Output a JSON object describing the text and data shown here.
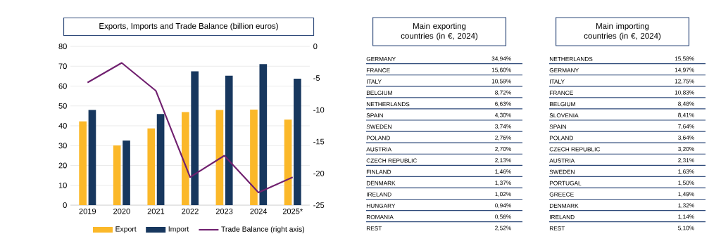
{
  "chart_data": [
    {
      "type": "bar",
      "title": "Exports, Imports and Trade Balance (billion euros)",
      "categories": [
        "2019",
        "2020",
        "2021",
        "2022",
        "2023",
        "2024",
        "2025*"
      ],
      "series": [
        {
          "name": "Export",
          "color": "#fbb829",
          "values": [
            42.2,
            30.1,
            38.7,
            46.9,
            48.0,
            48.1,
            43.1
          ]
        },
        {
          "name": "Import",
          "color": "#17375e",
          "values": [
            48.0,
            32.6,
            45.9,
            67.4,
            65.2,
            71.1,
            63.7
          ]
        },
        {
          "name": "Trade Balance (right axis)",
          "type": "line",
          "axis": "y2",
          "color": "#70206f",
          "values": [
            -5.7,
            -2.6,
            -7.0,
            -20.6,
            -17.2,
            -23.0,
            -20.6
          ]
        }
      ],
      "ylim": [
        0,
        80
      ],
      "yticks": [
        0,
        10,
        20,
        30,
        40,
        50,
        60,
        70,
        80
      ],
      "y2lim": [
        -25,
        0
      ],
      "y2ticks": [
        -25,
        -20,
        -15,
        -10,
        -5,
        0
      ],
      "grid": "y",
      "legend": "bottom"
    },
    {
      "type": "other",
      "title": "Main exporting countries (in €, 2024)",
      "categories": [
        "GERMANY",
        "FRANCE",
        "ITALY",
        "BELGIUM",
        "NETHERLANDS",
        "SPAIN",
        "SWEDEN",
        "POLAND",
        "AUSTRIA",
        "CZECH REPUBLIC",
        "FINLAND",
        "DENMARK",
        "IRELAND",
        "HUNGARY",
        "ROMANIA",
        "REST"
      ],
      "value_labels": [
        "34,94%",
        "15,60%",
        "10,59%",
        "8,72%",
        "6,63%",
        "4,30%",
        "3,74%",
        "2,76%",
        "2,70%",
        "2,13%",
        "1,46%",
        "1,37%",
        "1,02%",
        "0,94%",
        "0,56%",
        "2,52%"
      ]
    },
    {
      "type": "other",
      "title": "Main importing countries (in €, 2024)",
      "categories": [
        "NETHERLANDS",
        "GERMANY",
        "ITALY",
        "FRANCE",
        "BELGIUM",
        "SLOVENIA",
        "SPAIN",
        "POLAND",
        "CZECH REPUBLIC",
        "AUSTRIA",
        "SWEDEN",
        "PORTUGAL",
        "GREECE",
        "DENMARK",
        "IRELAND",
        "REST"
      ],
      "value_labels": [
        "15,58%",
        "14,97%",
        "12,75%",
        "10,83%",
        "8,48%",
        "8,41%",
        "7,64%",
        "3,64%",
        "3,20%",
        "2,31%",
        "1,63%",
        "1,50%",
        "1,49%",
        "1,32%",
        "1,14%",
        "5,10%"
      ]
    }
  ]
}
